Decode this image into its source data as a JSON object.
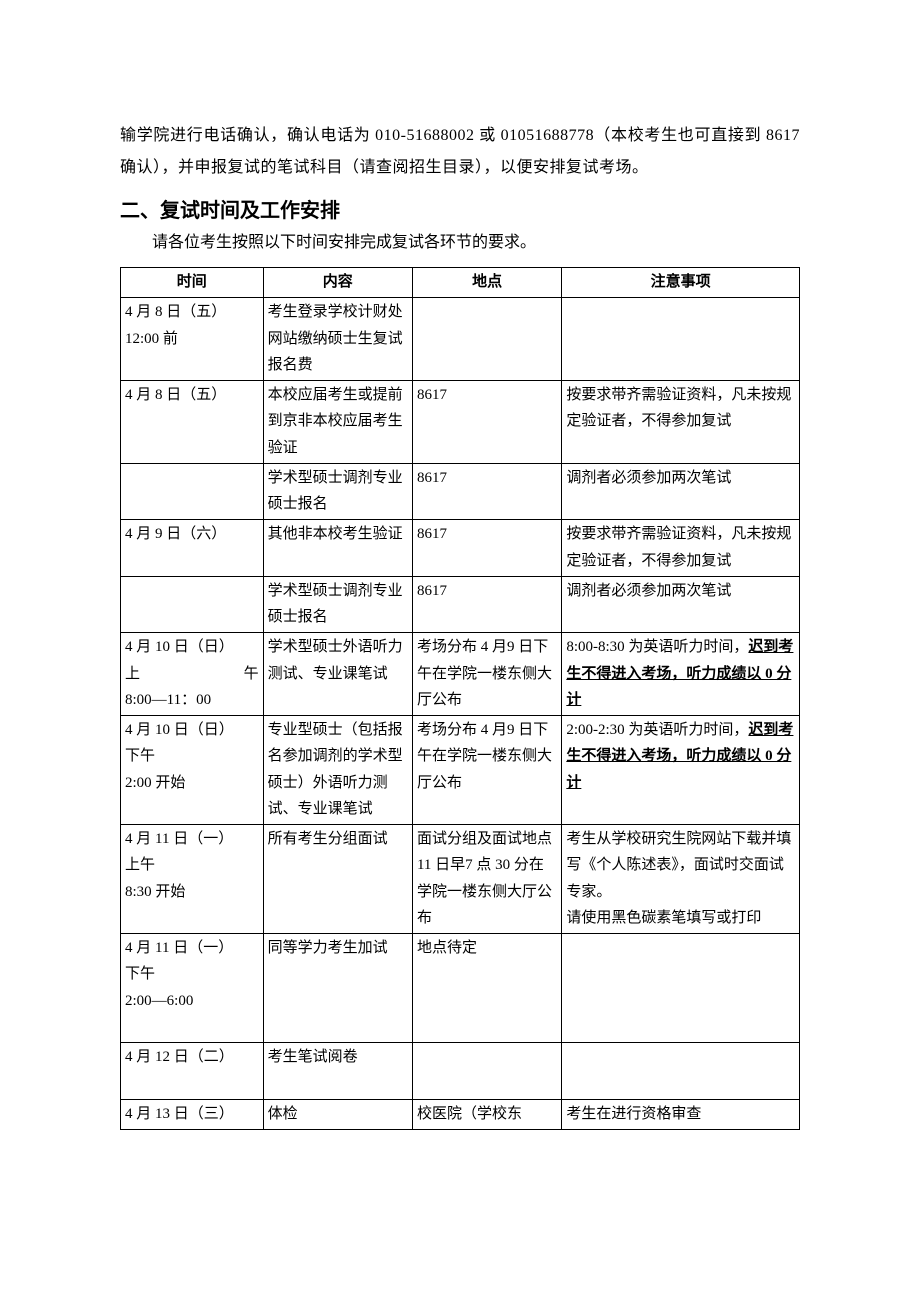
{
  "paragraph1": "输学院进行电话确认，确认电话为 010-51688002 或 01051688778（本校考生也可直接到 8617 确认），并申报复试的笔试科目（请查阅招生目录），以便安排复试考场。",
  "heading": "二、复试时间及工作安排",
  "intro": "请各位考生按照以下时间安排完成复试各环节的要求。",
  "table": {
    "headers": [
      "时间",
      "内容",
      "地点",
      "注意事项"
    ],
    "rows": [
      {
        "time": "4 月 8 日（五）12:00 前",
        "content": "考生登录学校计财处网站缴纳硕士生复试报名费",
        "location": "",
        "notice_plain": ""
      },
      {
        "time": "4 月 8 日（五）",
        "content": "本校应届考生或提前到京非本校应届考生验证",
        "location": "8617",
        "notice_plain": "按要求带齐需验证资料，凡未按规定验证者，不得参加复试"
      },
      {
        "time": "",
        "content": "学术型硕士调剂专业硕士报名",
        "location": "8617",
        "notice_plain": "调剂者必须参加两次笔试"
      },
      {
        "time": "4 月 9 日（六）",
        "content": "其他非本校考生验证",
        "location": "8617",
        "notice_plain": "按要求带齐需验证资料，凡未按规定验证者，不得参加复试"
      },
      {
        "time": "",
        "content": "学术型硕士调剂专业硕士报名",
        "location": "8617",
        "notice_plain": "调剂者必须参加两次笔试"
      },
      {
        "time_lines": [
          "4 月 10 日（日）",
          "上午",
          "8:00—11：00"
        ],
        "time_spread_idx": 1,
        "content": "学术型硕士外语听力测试、专业课笔试",
        "location": "考场分布 4 月9 日下午在学院一楼东侧大厅公布",
        "notice_pre": "8:00-8:30 为英语听力时间，",
        "notice_u": "迟到考生不得进入考场，听力成绩以 0 分计"
      },
      {
        "time_lines": [
          "4 月 10 日（日）",
          "下午",
          "2:00 开始"
        ],
        "content": "专业型硕士（包括报名参加调剂的学术型硕士）外语听力测试、专业课笔试",
        "location": "考场分布 4 月9 日下午在学院一楼东侧大厅公布",
        "notice_pre": "2:00-2:30 为英语听力时间，",
        "notice_u": "迟到考生不得进入考场，听力成绩以 0 分计"
      },
      {
        "time_lines": [
          "4 月 11 日（一）",
          "上午",
          "8:30 开始"
        ],
        "content": "所有考生分组面试",
        "location": "面试分组及面试地点 11 日早7 点 30 分在学院一楼东侧大厅公布",
        "notice_plain": "考生从学校研究生院网站下载并填写《个人陈述表》，面试时交面试专家。\n请使用黑色碳素笔填写或打印"
      },
      {
        "time_lines": [
          "4 月 11 日（一）",
          "下午",
          "2:00—6:00",
          ""
        ],
        "content": "同等学力考生加试",
        "location": "地点待定",
        "notice_plain": ""
      },
      {
        "time_lines": [
          "4 月 12 日（二）",
          ""
        ],
        "content": "考生笔试阅卷",
        "location": "",
        "notice_plain": ""
      },
      {
        "time": "4 月 13 日（三）",
        "content": "体检",
        "location": "校医院（学校东",
        "notice_plain": "考生在进行资格审查"
      }
    ]
  }
}
